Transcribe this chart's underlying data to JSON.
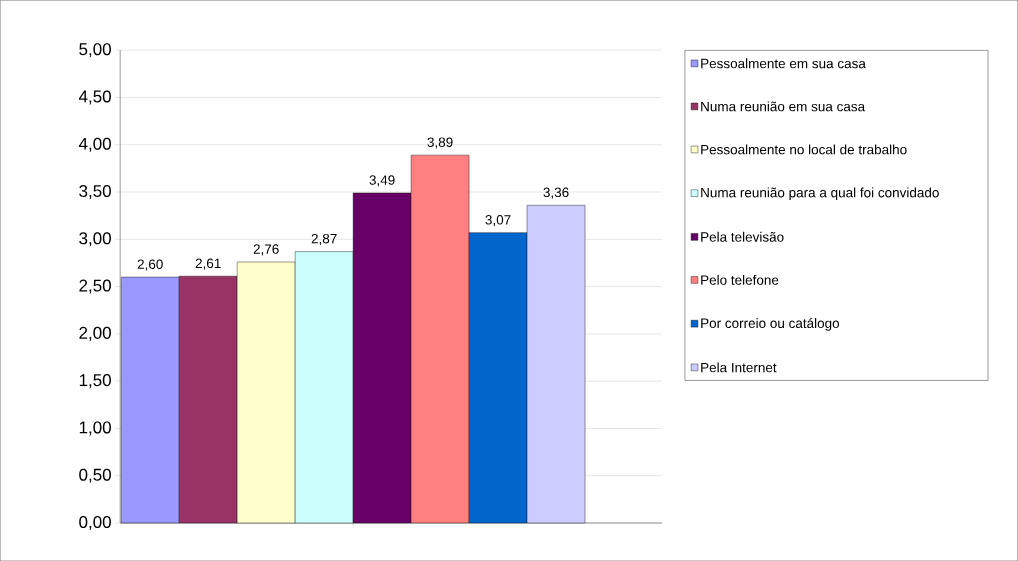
{
  "chart_data": {
    "type": "bar",
    "categories": [
      null
    ],
    "series": [
      {
        "name": "Pessoalmente em sua casa",
        "color": "#9999ff",
        "values": [
          2.6
        ],
        "value_labels": [
          "2,60"
        ]
      },
      {
        "name": "Numa reunião em sua casa",
        "color": "#993366",
        "values": [
          2.61
        ],
        "value_labels": [
          "2,61"
        ]
      },
      {
        "name": "Pessoalmente no local de trabalho",
        "color": "#ffffcc",
        "values": [
          2.76
        ],
        "value_labels": [
          "2,76"
        ]
      },
      {
        "name": "Numa reunião para a qual foi convidado",
        "color": "#ccffff",
        "values": [
          2.87
        ],
        "value_labels": [
          "2,87"
        ]
      },
      {
        "name": "Pela televisão",
        "color": "#660066",
        "values": [
          3.49
        ],
        "value_labels": [
          "3,49"
        ]
      },
      {
        "name": "Pelo telefone",
        "color": "#ff8080",
        "values": [
          3.89
        ],
        "value_labels": [
          "3,89"
        ]
      },
      {
        "name": "Por correio ou catálogo",
        "color": "#0066cc",
        "values": [
          3.07
        ],
        "value_labels": [
          "3,07"
        ]
      },
      {
        "name": "Pela Internet",
        "color": "#ccccff",
        "values": [
          3.36
        ],
        "value_labels": [
          "3,36"
        ]
      }
    ],
    "ylim": [
      0,
      5
    ],
    "yticks": [
      {
        "value": 0,
        "label": "0,00"
      },
      {
        "value": 0.5,
        "label": "0,50"
      },
      {
        "value": 1,
        "label": "1,00"
      },
      {
        "value": 1.5,
        "label": "1,50"
      },
      {
        "value": 2,
        "label": "2,00"
      },
      {
        "value": 2.5,
        "label": "2,50"
      },
      {
        "value": 3,
        "label": "3,00"
      },
      {
        "value": 3.5,
        "label": "3,50"
      },
      {
        "value": 4,
        "label": "4,00"
      },
      {
        "value": 4.5,
        "label": "4,50"
      },
      {
        "value": 5,
        "label": "5,00"
      }
    ],
    "grid": "y",
    "legend": "right"
  }
}
